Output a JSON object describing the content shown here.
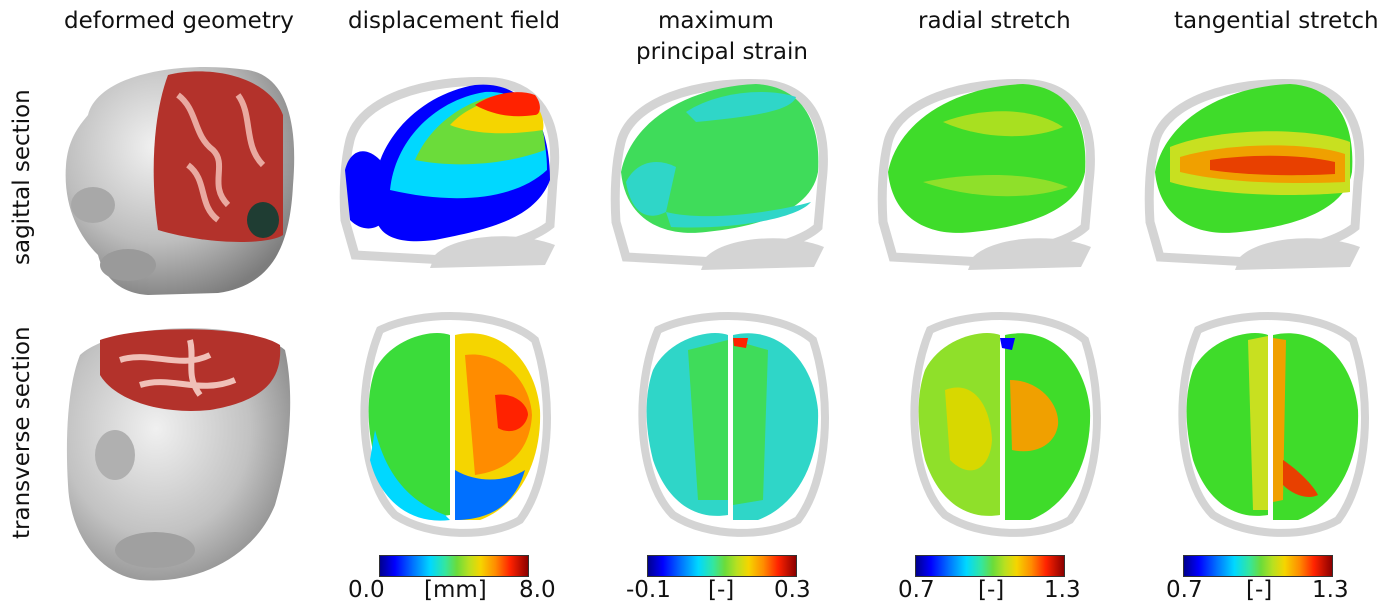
{
  "column_titles": {
    "deformed": "deformed geometry",
    "displacement": "displacement field",
    "strain_line1": "maximum",
    "strain_line2": "principal strain",
    "radial": "radial stretch",
    "tangential": "tangential stretch"
  },
  "row_titles": {
    "sagittal": "sagittal section",
    "transverse": "transverse section"
  },
  "colorbars": {
    "displacement": {
      "min": "0.0",
      "unit": "[mm]",
      "max": "8.0"
    },
    "strain": {
      "min": "-0.1",
      "unit": "[-]",
      "max": "0.3"
    },
    "radial": {
      "min": "0.7",
      "unit": "[-]",
      "max": "1.3"
    },
    "tangential": {
      "min": "0.7",
      "unit": "[-]",
      "max": "1.3"
    }
  },
  "colors": {
    "skull_gray": "#d4d4d4",
    "brain_red": "#b3322b",
    "colormap": [
      "#00008f",
      "#0000ff",
      "#00d8ff",
      "#6bdc3a",
      "#f5d500",
      "#ff2200",
      "#8b0000"
    ]
  }
}
